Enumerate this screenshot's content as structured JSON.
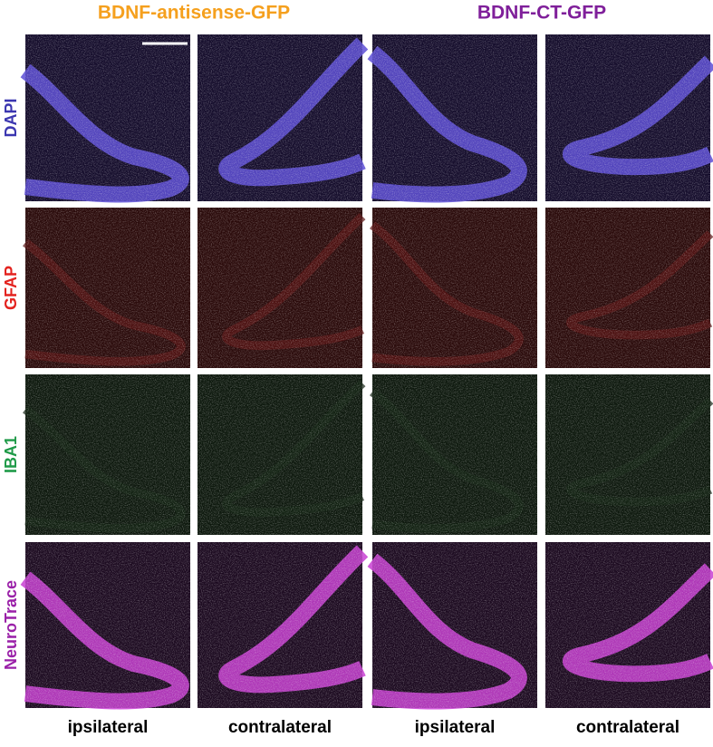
{
  "column_groups": [
    {
      "title": "BDNF-antisense-GFP"
    },
    {
      "title": "BDNF-CT-GFP"
    }
  ],
  "rows": [
    "DAPI",
    "GFAP",
    "IBA1",
    "NeuroTrace"
  ],
  "columns": [
    "ipsilateral",
    "contralateral",
    "ipsilateral",
    "contralateral"
  ]
}
